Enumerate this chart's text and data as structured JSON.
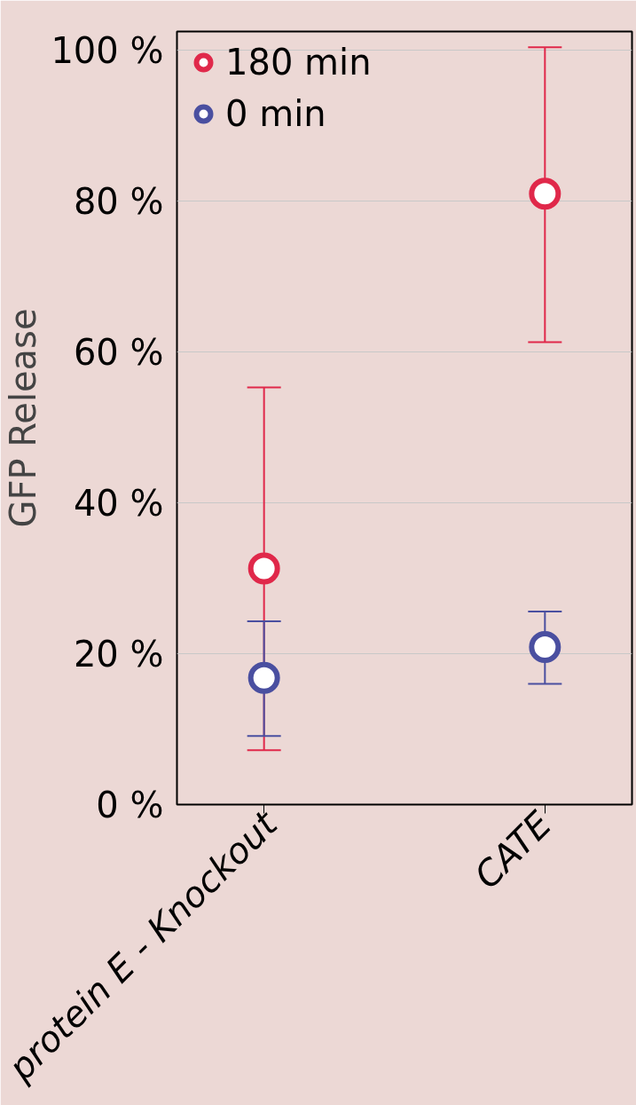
{
  "chart_data": {
    "type": "scatter",
    "ylabel": "GFP Release",
    "categories": [
      "protein E - Knockout",
      "CATE"
    ],
    "ylim": [
      0,
      102.5
    ],
    "yticks": [
      {
        "value": 0,
        "label": "0 %"
      },
      {
        "value": 20,
        "label": "20 %"
      },
      {
        "value": 40,
        "label": "40 %"
      },
      {
        "value": 60,
        "label": "60 %"
      },
      {
        "value": 80,
        "label": "80 %"
      },
      {
        "value": 100,
        "label": "100 %"
      }
    ],
    "series": [
      {
        "name": "180 min",
        "color": "#e0284a",
        "values": [
          31.3,
          81.0
        ],
        "errors": [
          [
            7.2,
            55.3
          ],
          [
            61.3,
            100.4
          ]
        ]
      },
      {
        "name": "0 min",
        "color": "#4a4fa0",
        "values": [
          16.8,
          20.9
        ],
        "errors": [
          [
            9.1,
            24.3
          ],
          [
            16.0,
            25.6
          ]
        ]
      }
    ],
    "grid": "y",
    "legend": "top left",
    "marker": "circle"
  }
}
